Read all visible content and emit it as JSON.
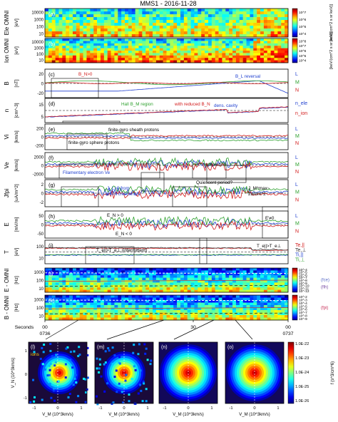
{
  "title": "MMS1 - 2016-11-28",
  "colors": {
    "L": "#1f3fcf",
    "M": "#2fa12f",
    "N": "#d21a1a",
    "accent_box": "#000000",
    "fce": "#5b6cc7",
    "flh": "#7a4ea6",
    "fpi": "#c8325a"
  },
  "panels": [
    {
      "id": "a",
      "tag": "(a)",
      "type": "spectrogram",
      "ylabel": "[eV]",
      "ticks": [
        "10000",
        "1000",
        "100",
        "10"
      ],
      "cbar_label": "[keV/(cm^2 s sr keV)]",
      "cbar_ticks": [
        "10^7",
        "10^6",
        "10^5",
        "10^4"
      ]
    },
    {
      "id": "b",
      "tag": "(b)",
      "type": "spectrogram",
      "ylabel": "[eV]",
      "ticks": [
        "10000",
        "1000",
        "100",
        "10"
      ],
      "cbar_label": "[keV/(cm^2 s sr keV)]",
      "cbar_ticks": [
        "10^8",
        "10^7",
        "10^6",
        "10^5",
        "10^4"
      ]
    },
    {
      "id": "c",
      "tag": "(c)",
      "type": "line",
      "ylabel": "[nT]",
      "ticks": [
        "20",
        "0",
        "-20"
      ],
      "legend": [
        "L",
        "M",
        "N"
      ],
      "annotations": [
        "B_N>0",
        "B_L reversal"
      ]
    },
    {
      "id": "d",
      "tag": "(d)",
      "type": "line",
      "ylabel": "[cm^-3]",
      "ticks": [
        "15",
        "5"
      ],
      "legend": [
        "n_ele",
        "n_ion"
      ],
      "annotations": [
        "Hall B_M region",
        "with reduced B_N",
        "dens. cavity"
      ]
    },
    {
      "id": "e",
      "tag": "(e)",
      "type": "line",
      "ylabel": "[km/s]",
      "ticks": [
        "200",
        "0",
        "-200"
      ],
      "legend": [
        "L",
        "M",
        "N"
      ],
      "annotations": [
        "finite-gyro sheath protons",
        "finite-gyro sphere protons"
      ]
    },
    {
      "id": "f",
      "tag": "(f)",
      "type": "line",
      "ylabel": "[km/s]",
      "ticks": [
        "2000",
        "0",
        "-2000"
      ],
      "legend": [
        "L",
        "M",
        "N"
      ],
      "annotations": [
        "Filamentary electron Ve"
      ]
    },
    {
      "id": "g",
      "tag": "(g)",
      "type": "line",
      "ylabel": "[uA/m^2]",
      "ticks": [
        "2",
        "0",
        "-2"
      ],
      "legend": [
        "L",
        "M",
        "N"
      ],
      "annotations": [
        "J_L>0 from",
        "anti-// crescents",
        "Quiescent period?",
        "J_M^max~",
        "2uA/m^2"
      ]
    },
    {
      "id": "h",
      "tag": "(h)",
      "type": "line",
      "ylabel": "[mV/m]",
      "ticks": [
        "50",
        "0",
        "-50"
      ],
      "legend": [
        "L",
        "M",
        "N"
      ],
      "annotations": [
        "E_N > 0",
        "E_N < 0",
        "E'≠0"
      ]
    },
    {
      "id": "i",
      "tag": "(i)",
      "type": "line",
      "ylabel": "[eV]",
      "ticks": [
        "100",
        "10"
      ],
      "legend": [
        "Te,||",
        "Te,⊥",
        "Ti,||",
        "Ti,⊥"
      ],
      "annotations": [
        "T_e||>T_e⊥ (intermittent)",
        "T_e||>T_e⊥"
      ]
    },
    {
      "id": "j",
      "tag": "(j)",
      "type": "spectrogram",
      "ylabel": "[Hz]",
      "ticks": [
        "1000",
        "100",
        "10"
      ],
      "cbar_label": "(V/m)^2/Hz",
      "cbar_ticks": [
        "10^-4",
        "10^-5",
        "10^-6",
        "10^-7",
        "10^-8",
        "10^-9",
        "10^-10",
        "10^-11",
        "10^-12"
      ],
      "legend": [
        "(fce)",
        "(flh)"
      ]
    },
    {
      "id": "k",
      "tag": "(k)",
      "type": "spectrogram",
      "ylabel": "[Hz]",
      "ticks": [
        "1000",
        "100",
        "10"
      ],
      "cbar_label": "nT^2/Hz",
      "cbar_ticks": [
        "10^-2",
        "10^-3",
        "10^-4",
        "10^-5",
        "10^-6",
        "10^-7",
        "10^-8",
        "10^-9"
      ],
      "legend": [
        "(fpi)"
      ]
    }
  ],
  "side_labels": [
    "Ele OMNI",
    "Ion OMNI",
    "B",
    "n",
    "Vi",
    "Ve",
    "Jfpi",
    "E",
    "T",
    "E - OMNI",
    "B - OMNI"
  ],
  "time_axis": {
    "label": "Seconds",
    "ticks": [
      "00",
      "30",
      "00"
    ],
    "ticks2": [
      "0736",
      "",
      "0737"
    ]
  },
  "vdf": {
    "panels": [
      "(l)",
      "(m)",
      "(n)",
      "(o)"
    ],
    "inset_label": "ions",
    "ylabel": "V_N (10^3km/s)",
    "xlabel": "V_M (10^3km/s)",
    "xticks": [
      "-1",
      "0",
      "1"
    ],
    "yticks": [
      "1",
      "0",
      "-1"
    ],
    "cbar_label": "f (s^3/cm^6)",
    "cbar_ticks": [
      "1.0E-22",
      "1.0E-23",
      "1.0E-24",
      "1.0E-25",
      "1.0E-26"
    ]
  }
}
